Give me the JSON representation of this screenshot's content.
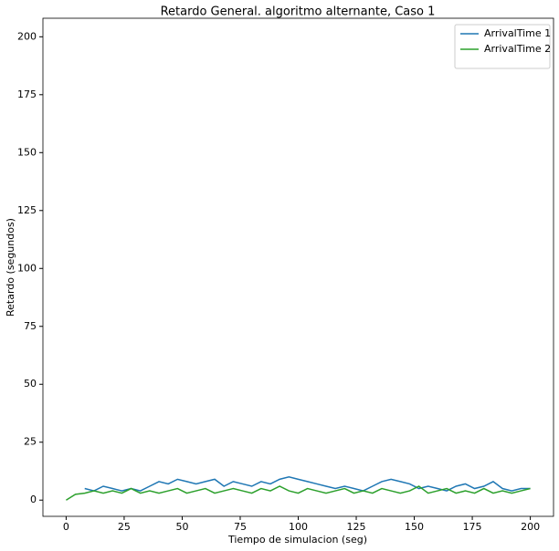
{
  "chart_data": {
    "type": "line",
    "title": "Retardo General. algoritmo alternante, Caso 1",
    "x_label": "Tiempo de simulacion (seg)",
    "y_label": "Retardo (segundos)",
    "x": [
      0,
      4,
      8,
      12,
      16,
      20,
      24,
      28,
      32,
      36,
      40,
      44,
      48,
      52,
      56,
      60,
      64,
      68,
      72,
      76,
      80,
      84,
      88,
      92,
      96,
      100,
      104,
      108,
      112,
      116,
      120,
      124,
      128,
      132,
      136,
      140,
      144,
      148,
      152,
      156,
      160,
      164,
      168,
      172,
      176,
      180,
      184,
      188,
      192,
      196,
      200
    ],
    "series": [
      {
        "name": "ArrivalTime 1",
        "color": "#1f77b4",
        "values": [
          null,
          null,
          5,
          4,
          6,
          5,
          4,
          5,
          4,
          6,
          8,
          7,
          9,
          8,
          7,
          8,
          9,
          6,
          8,
          7,
          6,
          8,
          7,
          9,
          10,
          9,
          8,
          7,
          6,
          5,
          6,
          5,
          4,
          6,
          8,
          9,
          8,
          7,
          5,
          6,
          5,
          4,
          6,
          7,
          5,
          6,
          8,
          5,
          4,
          5,
          5
        ]
      },
      {
        "name": "ArrivalTime 2",
        "color": "#2ca02c",
        "values": [
          0,
          2.5,
          3,
          4,
          3,
          4,
          3,
          5,
          3,
          4,
          3,
          4,
          5,
          3,
          4,
          5,
          3,
          4,
          5,
          4,
          3,
          5,
          4,
          6,
          4,
          3,
          5,
          4,
          3,
          4,
          5,
          3,
          4,
          3,
          5,
          4,
          3,
          4,
          6,
          3,
          4,
          5,
          3,
          4,
          3,
          5,
          3,
          4,
          3,
          4,
          5
        ]
      }
    ],
    "xlim": [
      -10,
      210
    ],
    "ylim": [
      -7,
      208
    ],
    "xticks": [
      0,
      25,
      50,
      75,
      100,
      125,
      150,
      175,
      200
    ],
    "yticks": [
      0,
      25,
      50,
      75,
      100,
      125,
      150,
      175,
      200
    ],
    "legend": "upper right"
  }
}
